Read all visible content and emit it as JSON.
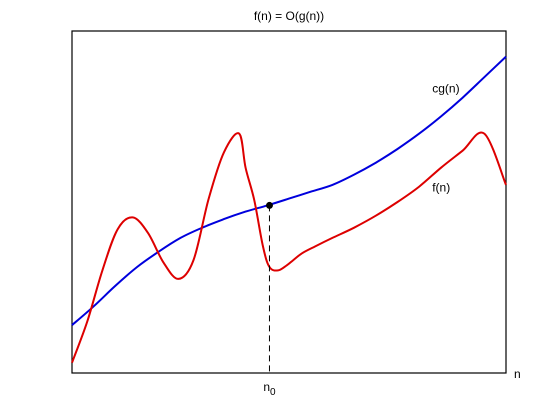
{
  "chart_data": {
    "type": "line",
    "title": "f(n) = O(g(n))",
    "xlabel": "n",
    "ylabel": "",
    "axis_ticks": false,
    "grid": false,
    "xlim": [
      0,
      10
    ],
    "ylim": [
      0,
      10
    ],
    "series": [
      {
        "name": "cg(n)",
        "color": "#0000dd",
        "label_at": [
          8.3,
          8.2
        ],
        "x": [
          0,
          0.5,
          1,
          1.5,
          2,
          2.5,
          3,
          3.5,
          4,
          4.5,
          5,
          5.5,
          6,
          6.5,
          7,
          7.5,
          8,
          8.5,
          9,
          9.5,
          10
        ],
        "y": [
          1.4,
          1.95,
          2.55,
          3.1,
          3.55,
          3.95,
          4.25,
          4.5,
          4.72,
          4.9,
          5.1,
          5.3,
          5.5,
          5.8,
          6.15,
          6.55,
          7.0,
          7.5,
          8.05,
          8.65,
          9.25
        ]
      },
      {
        "name": "f(n)",
        "color": "#dd0000",
        "label_at": [
          8.3,
          5.3
        ],
        "x": [
          0,
          0.35,
          0.7,
          1.05,
          1.4,
          1.75,
          2.1,
          2.45,
          2.8,
          3.15,
          3.5,
          3.85,
          4.0,
          4.2,
          4.4,
          4.55,
          4.75,
          4.95,
          5.1,
          5.3,
          5.6,
          6.0,
          6.5,
          7.0,
          7.5,
          8.0,
          8.5,
          9.0,
          9.5,
          10.0
        ],
        "y": [
          0.3,
          1.5,
          3.0,
          4.2,
          4.55,
          4.1,
          3.25,
          2.75,
          3.3,
          5.1,
          6.45,
          7.0,
          6.0,
          5.05,
          3.7,
          3.1,
          3.0,
          3.15,
          3.3,
          3.5,
          3.7,
          3.95,
          4.25,
          4.6,
          5.0,
          5.45,
          6.0,
          6.5,
          7.0,
          5.5
        ]
      }
    ],
    "marker": {
      "x": 4.55,
      "y": 4.9,
      "color": "#000000"
    },
    "threshold": {
      "x": 4.55,
      "label_main": "n",
      "label_sub": "0"
    }
  }
}
